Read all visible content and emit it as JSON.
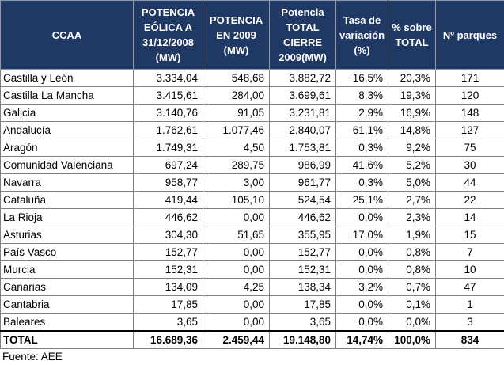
{
  "colors": {
    "header_bg": "#1f3864",
    "header_text": "#ffffff"
  },
  "table": {
    "headers": [
      "CCAA",
      "POTENCIA EÓLICA A 31/12/2008 (MW)",
      "POTENCIA EN 2009 (MW)",
      "Potencia TOTAL CIERRE 2009(MW)",
      "Tasa de variación (%)",
      "% sobre TOTAL",
      "Nº parques"
    ],
    "rows": [
      [
        "Castilla y León",
        "3.334,04",
        "548,68",
        "3.882,72",
        "16,5%",
        "20,3%",
        "171"
      ],
      [
        "Castilla La Mancha",
        "3.415,61",
        "284,00",
        "3.699,61",
        "8,3%",
        "19,3%",
        "120"
      ],
      [
        "Galicia",
        "3.140,76",
        "91,05",
        "3.231,81",
        "2,9%",
        "16,9%",
        "148"
      ],
      [
        "Andalucía",
        "1.762,61",
        "1.077,46",
        "2.840,07",
        "61,1%",
        "14,8%",
        "127"
      ],
      [
        "Aragón",
        "1.749,31",
        "4,50",
        "1.753,81",
        "0,3%",
        "9,2%",
        "75"
      ],
      [
        "Comunidad Valenciana",
        "697,24",
        "289,75",
        "986,99",
        "41,6%",
        "5,2%",
        "30"
      ],
      [
        "Navarra",
        "958,77",
        "3,00",
        "961,77",
        "0,3%",
        "5,0%",
        "44"
      ],
      [
        "Cataluña",
        "419,44",
        "105,10",
        "524,54",
        "25,1%",
        "2,7%",
        "22"
      ],
      [
        "La Rioja",
        "446,62",
        "0,00",
        "446,62",
        "0,0%",
        "2,3%",
        "14"
      ],
      [
        "Asturias",
        "304,30",
        "51,65",
        "355,95",
        "17,0%",
        "1,9%",
        "15"
      ],
      [
        "País Vasco",
        "152,77",
        "0,00",
        "152,77",
        "0,0%",
        "0,8%",
        "7"
      ],
      [
        "Murcia",
        "152,31",
        "0,00",
        "152,31",
        "0,0%",
        "0,8%",
        "10"
      ],
      [
        "Canarias",
        "134,09",
        "4,25",
        "138,34",
        "3,2%",
        "0,7%",
        "47"
      ],
      [
        "Cantabria",
        "17,85",
        "0,00",
        "17,85",
        "0,0%",
        "0,1%",
        "1"
      ],
      [
        "Baleares",
        "3,65",
        "0,00",
        "3,65",
        "0,0%",
        "0,0%",
        "3"
      ]
    ],
    "total": [
      "TOTAL",
      "16.689,36",
      "2.459,44",
      "19.148,80",
      "14,74%",
      "100,0%",
      "834"
    ]
  },
  "footnote": "Fuente: AEE"
}
